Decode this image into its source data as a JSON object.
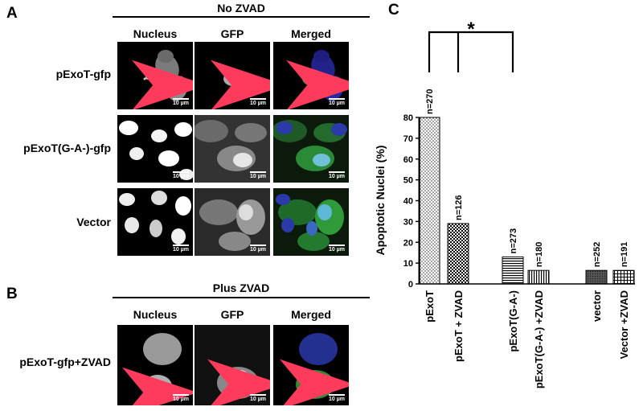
{
  "panelA": {
    "letter": "A",
    "condition": "No ZVAD",
    "columns": [
      "Nucleus",
      "GFP",
      "Merged"
    ],
    "rows": [
      "pExoT-gfp",
      "pExoT(G-A-)-gfp",
      "Vector"
    ],
    "scale_label": "10 µm"
  },
  "panelB": {
    "letter": "B",
    "condition": "Plus ZVAD",
    "columns": [
      "Nucleus",
      "GFP",
      "Merged"
    ],
    "rows": [
      "pExoT-gfp+ZVAD"
    ],
    "scale_label": "10 µm"
  },
  "panelC": {
    "letter": "C",
    "significance": "*"
  },
  "chart_data": {
    "type": "bar",
    "ylabel": "Apoptotic Nuclei  (%)",
    "xlabel": "",
    "ylim": [
      0,
      80
    ],
    "yticks": [
      0,
      10,
      20,
      30,
      40,
      50,
      60,
      70,
      80
    ],
    "categories": [
      "pExoT",
      "pExoT + ZVAD",
      "pExoT(G-A-)",
      "pExoT(G-A-) +ZVAD",
      "vector",
      "Vector +ZVAD"
    ],
    "values": [
      80,
      29,
      13,
      6.5,
      6.5,
      6.5
    ],
    "n_labels": [
      "n=270",
      "n=126",
      "n=273",
      "n=180",
      "n=252",
      "n=191"
    ],
    "grid": false,
    "legend": "none"
  }
}
